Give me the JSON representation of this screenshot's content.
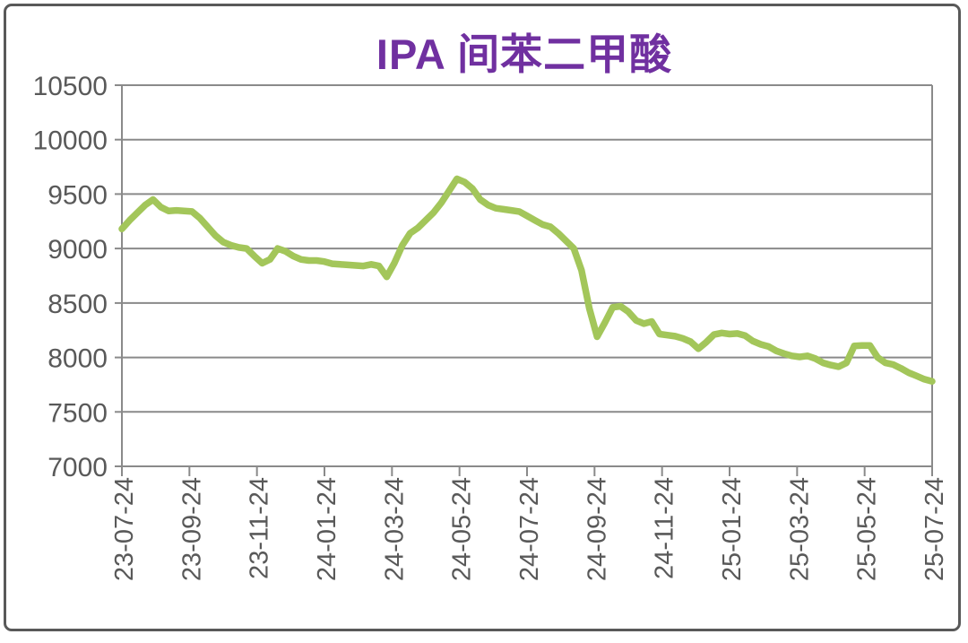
{
  "title": "IPA 间苯二甲酸",
  "colors": {
    "title": "#7030A0",
    "axis_text": "#595959",
    "grid": "#8a8a8a",
    "line": "#A3C65A",
    "card_border": "#595959"
  },
  "chart_data": {
    "type": "line",
    "title": "IPA 间苯二甲酸",
    "xlabel": "",
    "ylabel": "",
    "ylim": [
      7000,
      10500
    ],
    "grid": true,
    "legend": false,
    "y_ticks": [
      10500,
      10000,
      9500,
      9000,
      8500,
      8000,
      7500,
      7000
    ],
    "x_tick_labels": [
      "23-07-24",
      "23-09-24",
      "23-11-24",
      "24-01-24",
      "24-03-24",
      "24-05-24",
      "24-07-24",
      "24-09-24",
      "24-11-24",
      "25-01-24",
      "25-03-24",
      "25-05-24",
      "25-07-24"
    ],
    "x_start": "23-07-24",
    "x_end": "25-07-24",
    "frequency": "weekly",
    "values": [
      9180,
      9260,
      9330,
      9400,
      9450,
      9380,
      9345,
      9350,
      9345,
      9340,
      9280,
      9200,
      9120,
      9060,
      9030,
      9010,
      9000,
      8930,
      8865,
      8900,
      9000,
      8975,
      8930,
      8900,
      8890,
      8890,
      8880,
      8860,
      8855,
      8850,
      8845,
      8840,
      8855,
      8840,
      8740,
      8870,
      9030,
      9140,
      9190,
      9260,
      9330,
      9420,
      9530,
      9640,
      9610,
      9550,
      9450,
      9400,
      9370,
      9360,
      9350,
      9340,
      9300,
      9260,
      9220,
      9200,
      9140,
      9070,
      9000,
      8800,
      8450,
      8190,
      8320,
      8460,
      8470,
      8420,
      8340,
      8310,
      8330,
      8215,
      8205,
      8195,
      8175,
      8145,
      8080,
      8140,
      8210,
      8225,
      8215,
      8220,
      8200,
      8150,
      8120,
      8100,
      8060,
      8035,
      8015,
      8005,
      8015,
      7990,
      7950,
      7930,
      7915,
      7950,
      8105,
      8110,
      8110,
      8000,
      7950,
      7935,
      7900,
      7860,
      7830,
      7800,
      7780
    ]
  }
}
